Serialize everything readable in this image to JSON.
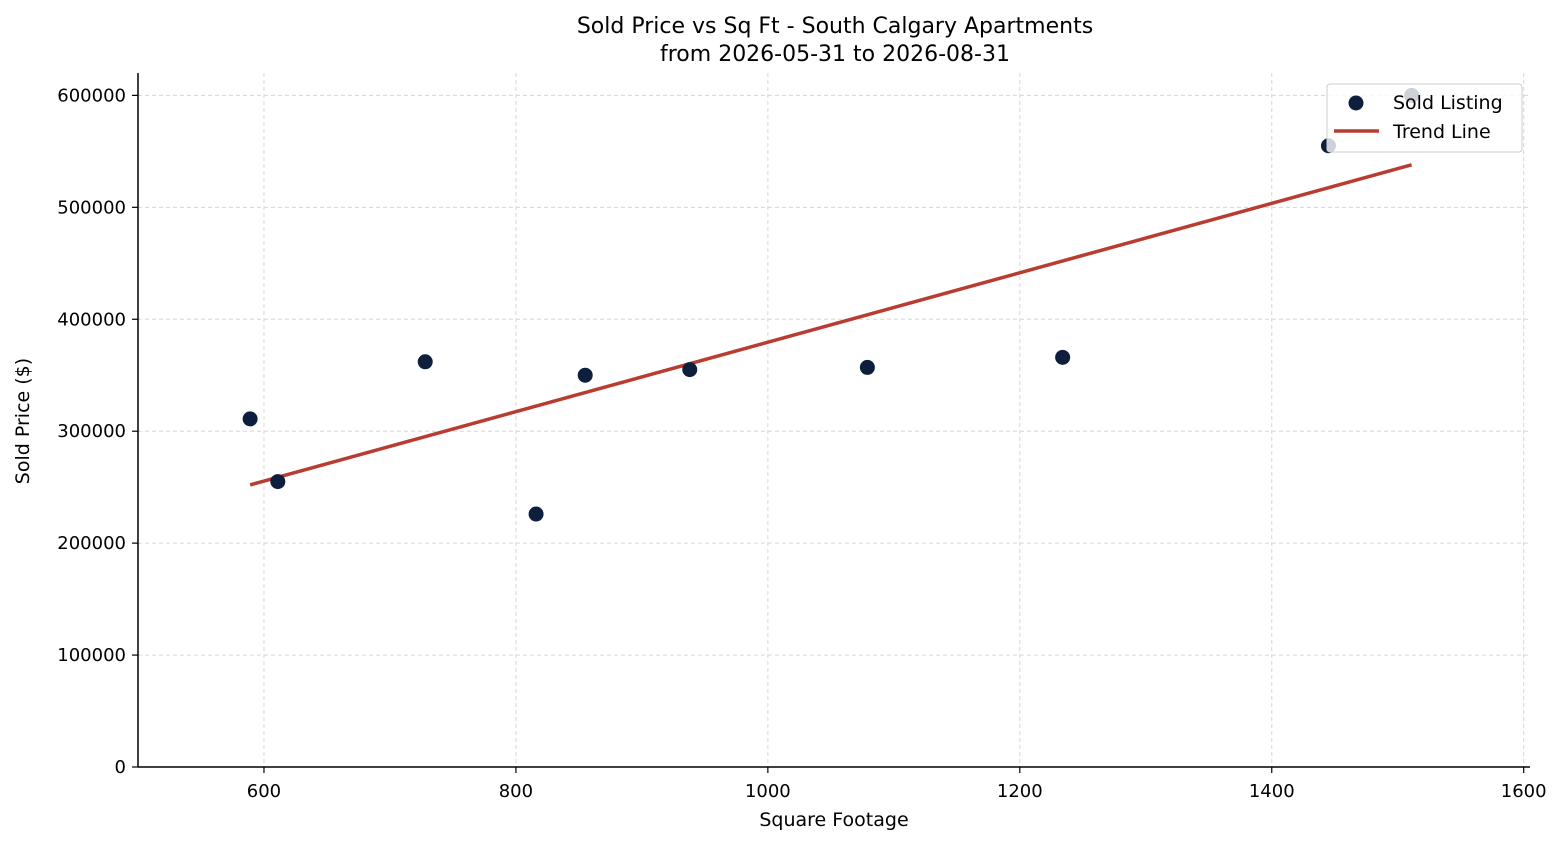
{
  "chart_data": {
    "type": "scatter",
    "title": "Sold Price vs Sq Ft - South Calgary Apartments",
    "subtitle": "from 2026-05-31 to 2026-08-31",
    "xlabel": "Square Footage",
    "ylabel": "Sold Price ($)",
    "xlim": [
      500,
      1605
    ],
    "ylim": [
      0,
      620000
    ],
    "x_ticks": [
      600,
      800,
      1000,
      1200,
      1400,
      1600
    ],
    "y_ticks": [
      0,
      100000,
      200000,
      300000,
      400000,
      500000,
      600000
    ],
    "grid": true,
    "legend_position": "top-right",
    "series": [
      {
        "name": "Sold Listing",
        "kind": "scatter",
        "color": "#0d1f3c",
        "x": [
          589,
          611,
          728,
          816,
          855,
          938,
          1079,
          1234,
          1445,
          1511
        ],
        "y": [
          311000,
          255000,
          362000,
          226000,
          350000,
          355000,
          357000,
          366000,
          555000,
          600000
        ]
      },
      {
        "name": "Trend Line",
        "kind": "line",
        "color": "#b83c30",
        "x": [
          589,
          1511
        ],
        "y": [
          252000,
          538000
        ]
      }
    ]
  }
}
